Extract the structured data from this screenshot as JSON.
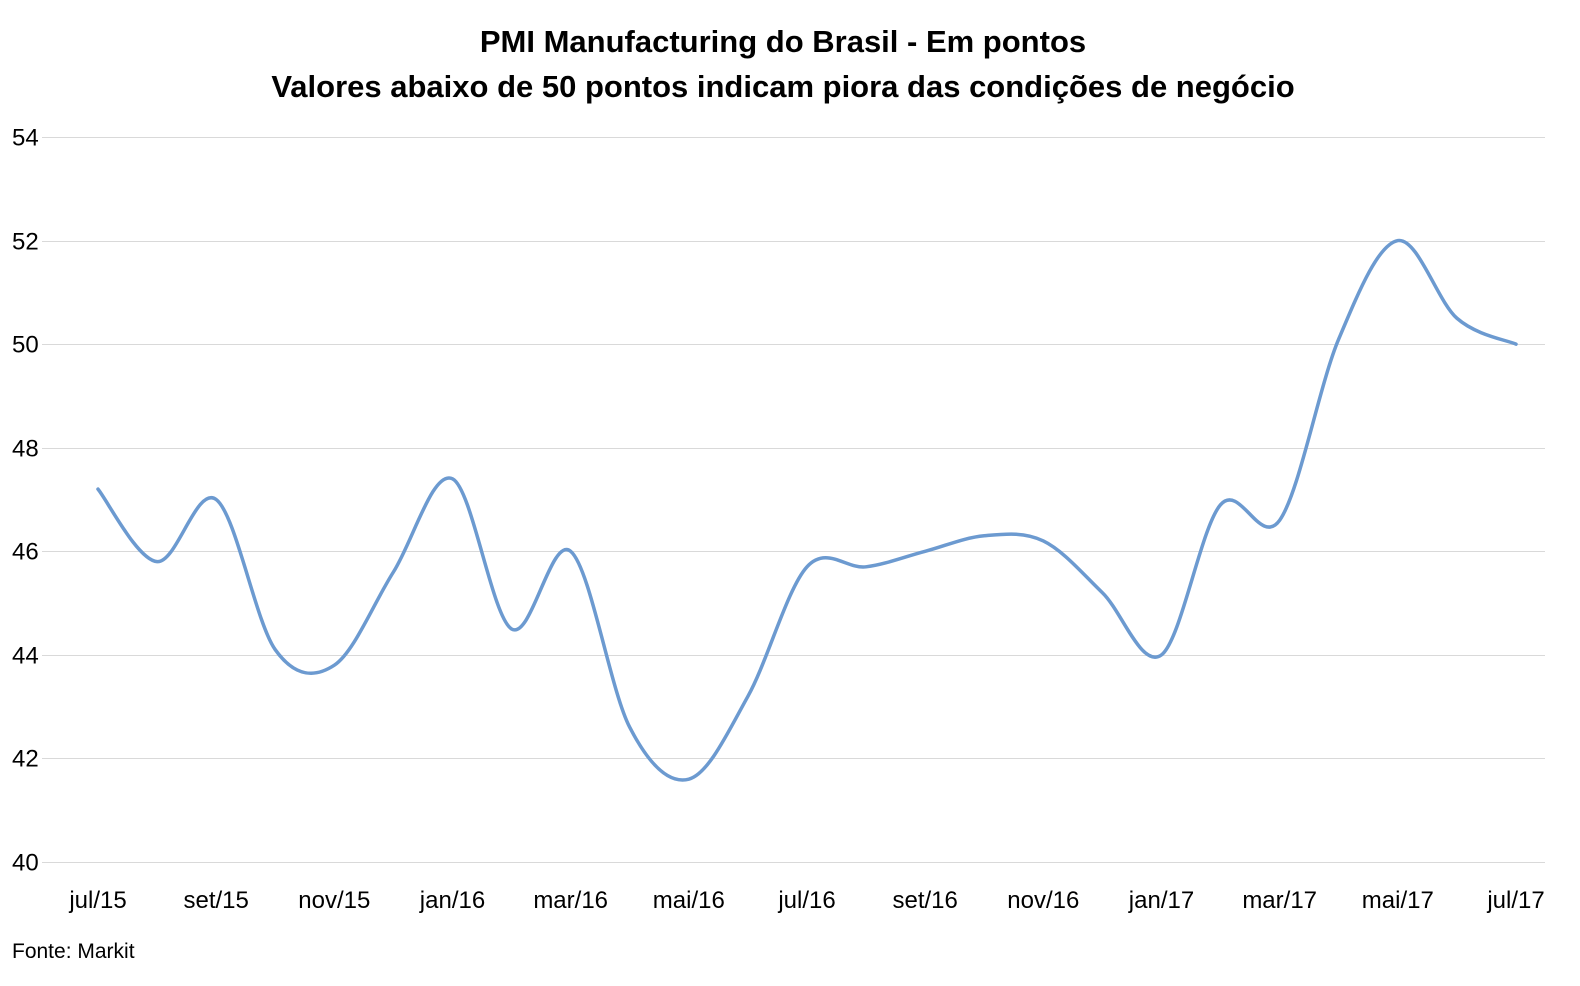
{
  "chart_data": {
    "type": "line",
    "title": "PMI Manufacturing do Brasil - Em pontos",
    "subtitle": "Valores abaixo de 50 pontos indicam piora das condições de negócio",
    "source": "Fonte: Markit",
    "x": [
      "jul/15",
      "ago/15",
      "set/15",
      "out/15",
      "nov/15",
      "dez/15",
      "jan/16",
      "fev/16",
      "mar/16",
      "abr/16",
      "mai/16",
      "jun/16",
      "jul/16",
      "ago/16",
      "set/16",
      "out/16",
      "nov/16",
      "dez/16",
      "jan/17",
      "fev/17",
      "mar/17",
      "abr/17",
      "mai/17",
      "jun/17",
      "jul/17"
    ],
    "x_tick_labels": [
      "jul/15",
      "set/15",
      "nov/15",
      "jan/16",
      "mar/16",
      "mai/16",
      "jul/16",
      "set/16",
      "nov/16",
      "jan/17",
      "mar/17",
      "mai/17",
      "jul/17"
    ],
    "series": [
      {
        "values": [
          47.2,
          45.8,
          47.0,
          44.1,
          43.8,
          45.6,
          47.4,
          44.5,
          46.0,
          42.6,
          41.6,
          43.2,
          45.7,
          45.7,
          46.0,
          46.3,
          46.2,
          45.2,
          44.0,
          46.9,
          46.6,
          50.1,
          52.0,
          50.5,
          50.0
        ],
        "color": "#6c9ad0"
      }
    ],
    "yticks": [
      40,
      42,
      44,
      46,
      48,
      50,
      52,
      54
    ],
    "ylim": [
      40,
      54
    ],
    "grid": true,
    "legend": "none"
  }
}
